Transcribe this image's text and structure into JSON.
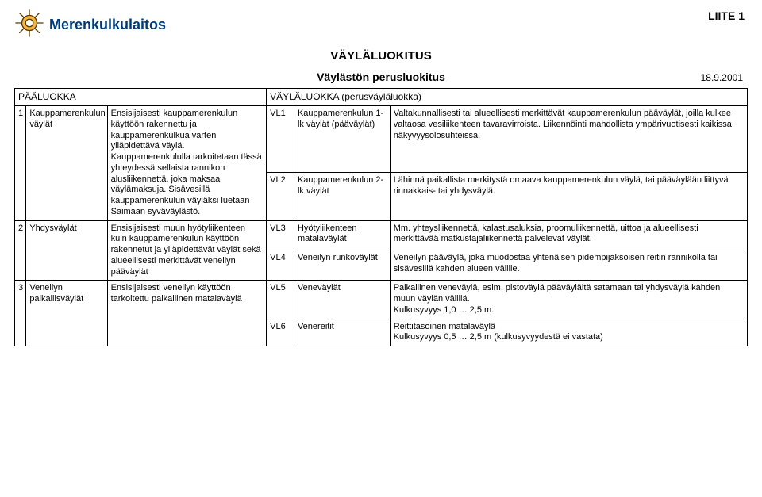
{
  "colors": {
    "brand_text": "#003a7a",
    "wheel_fill": "#f4b642",
    "wheel_stroke": "#5a3b00",
    "border": "#000000",
    "bg": "#ffffff",
    "text": "#000000"
  },
  "header": {
    "brand": "Merenkulkulaitos",
    "liite": "LIITE 1"
  },
  "titles": {
    "main": "VÄYLÄLUOKITUS",
    "sub": "Väylästön perusluokitus",
    "date": "18.9.2001"
  },
  "column_headers": {
    "left": "PÄÄLUOKKA",
    "right": "VÄYLÄLUOKKA  (perusväyläluokka)"
  },
  "rows": [
    {
      "num": "1",
      "name": "Kauppamerenkulun väylät",
      "desc": "Ensisijaisesti kauppamerenkulun käyttöön rakennettu ja kauppamerenkulkua varten ylläpidettävä väylä. Kauppamerenkululla tarkoitetaan tässä yhteydessä sellaista rannikon alusliikennettä, joka maksaa väylämaksuja. Sisävesillä kauppamerenkulun väyläksi luetaan Saimaan syväväylästö.",
      "subs": [
        {
          "code": "VL1",
          "label": "Kauppamerenkulun 1-lk väylät (pääväylät)",
          "exp": "Valtakunnallisesti tai alueellisesti merkittävät kauppamerenkulun pääväylät, joilla kulkee valtaosa vesiliikenteen tavaravirroista. Liikennöinti mahdollista ympärivuotisesti kaikissa näkyvyysolosuhteissa."
        },
        {
          "code": "VL2",
          "label": "Kauppamerenkulun 2-lk väylät",
          "exp": "Lähinnä paikallista merkitystä omaava kauppamerenkulun väylä, tai pääväylään liittyvä rinnakkais- tai yhdysväylä."
        }
      ]
    },
    {
      "num": "2",
      "name": "Yhdysväylät",
      "desc": "Ensisijaisesti muun hyötyliikenteen kuin kauppamerenkulun käyttöön rakennetut ja ylläpidettävät väylät sekä alueellisesti merkittävät veneilyn pääväylät",
      "subs": [
        {
          "code": "VL3",
          "label": "Hyötyliikenteen matalaväylät",
          "exp": "Mm. yhteysliikennettä, kalastusaluksia, proomuliikennettä, uittoa ja alueellisesti merkittävää matkustajaliikennettä palvelevat väylät."
        },
        {
          "code": "VL4",
          "label": "Veneilyn runkoväylät",
          "exp": "Veneilyn pääväylä, joka muodostaa yhtenäisen pidempijaksoisen reitin rannikolla tai sisävesillä kahden alueen välille."
        }
      ]
    },
    {
      "num": "3",
      "name": "Veneilyn paikallisväylät",
      "desc": "Ensisijaisesti veneilyn käyttöön tarkoitettu paikallinen matalaväylä",
      "subs": [
        {
          "code": "VL5",
          "label": "Veneväylät",
          "exp": "Paikallinen veneväylä, esim. pistoväylä pääväylältä satamaan  tai yhdysväylä kahden muun väylän välillä.\nKulkusyvyys 1,0 … 2,5 m."
        },
        {
          "code": "VL6",
          "label": "Venereitit",
          "exp": "Reittitasoinen matalaväylä\nKulkusyvyys 0,5 … 2,5 m (kulkusyvyydestä ei vastata)"
        }
      ]
    }
  ]
}
